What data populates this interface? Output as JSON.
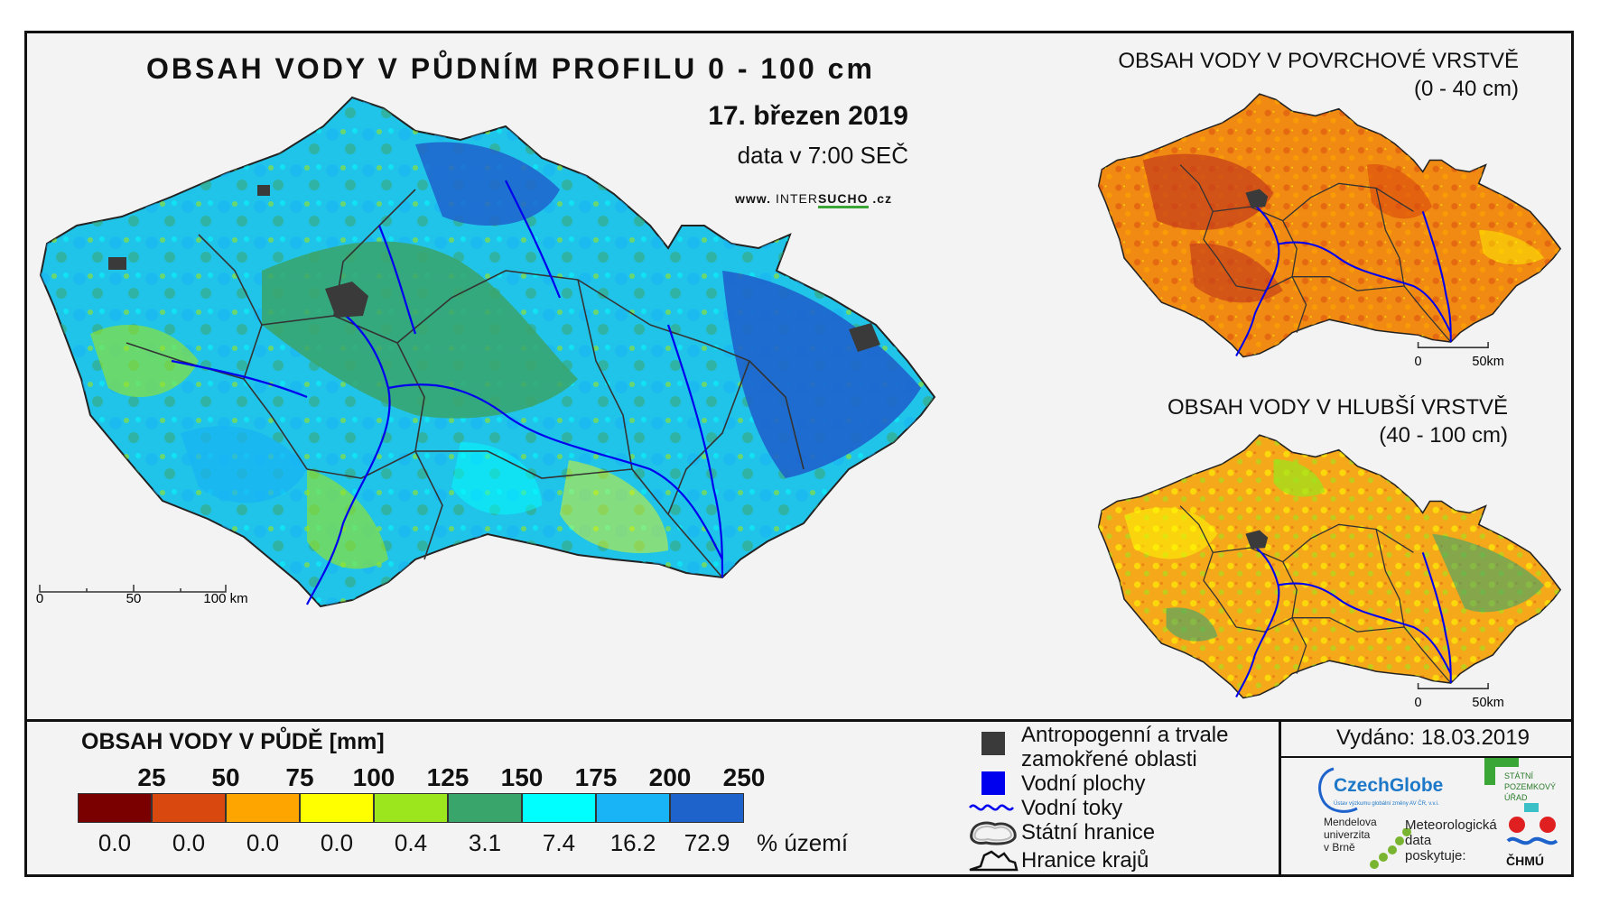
{
  "title": "OBSAH VODY V PŮDNÍM PROFILU 0 - 100 cm",
  "date": "17. březen 2019",
  "time": "data v 7:00 SEČ",
  "url": {
    "prefix": "www.",
    "inter": "INTER",
    "sucho": "SUCHO",
    "suffix": ".cz"
  },
  "main_map": {
    "scale": {
      "labels": [
        "0",
        "50",
        "100 km"
      ]
    }
  },
  "surface_map": {
    "title_line1": "OBSAH VODY V POVRCHOVÉ VRSTVĚ",
    "title_line2": "(0 - 40 cm)",
    "scale": {
      "labels": [
        "0",
        "50km"
      ]
    }
  },
  "deep_map": {
    "title_line1": "OBSAH VODY V HLUBŠÍ VRSTVĚ",
    "title_line2": "(40 - 100 cm)",
    "scale": {
      "labels": [
        "0",
        "50km"
      ]
    }
  },
  "legend": {
    "title": "OBSAH VODY V PŮDĚ [mm]",
    "thresholds": [
      "25",
      "50",
      "75",
      "100",
      "125",
      "150",
      "175",
      "200",
      "250"
    ],
    "classes": [
      {
        "color": "#7a0000",
        "percent": "0.0"
      },
      {
        "color": "#d9480f",
        "percent": "0.0"
      },
      {
        "color": "#ffa500",
        "percent": "0.0"
      },
      {
        "color": "#ffff00",
        "percent": "0.0"
      },
      {
        "color": "#9be61c",
        "percent": "0.4"
      },
      {
        "color": "#3aa56b",
        "percent": "3.1"
      },
      {
        "color": "#00ffff",
        "percent": "7.4"
      },
      {
        "color": "#18b4f5",
        "percent": "16.2"
      },
      {
        "color": "#1e63cc",
        "percent": "72.9"
      }
    ],
    "percent_unit": "% území"
  },
  "symbols": {
    "anthropogenic_line1": "Antropogenní a trvale",
    "anthropogenic_line2": "zamokřené oblasti",
    "water_bodies": "Vodní plochy",
    "rivers": "Vodní toky",
    "state_border": "Státní hranice",
    "region_border": "Hranice krajů"
  },
  "issued": "Vydáno: 18.03.2019",
  "logos": {
    "czechglobe": "CzechGlobe",
    "czechglobe_sub": "Ústav výzkumu globální změny AV ČR, v.v.i.",
    "spu_line1": "STÁTNÍ",
    "spu_line2": "POZEMKOVÝ",
    "spu_line3": "ÚŘAD",
    "mendel_line1": "Mendelova",
    "mendel_line2": "univerzita",
    "mendel_line3": "v Brně",
    "meteo_line1": "Meteorologická",
    "meteo_line2": "data",
    "meteo_line3": "poskytuje:",
    "chmu": "ČHMÚ"
  },
  "colors": {
    "water": "#0000ee",
    "anthropogenic": "#3a3a3a",
    "border": "#111111"
  }
}
